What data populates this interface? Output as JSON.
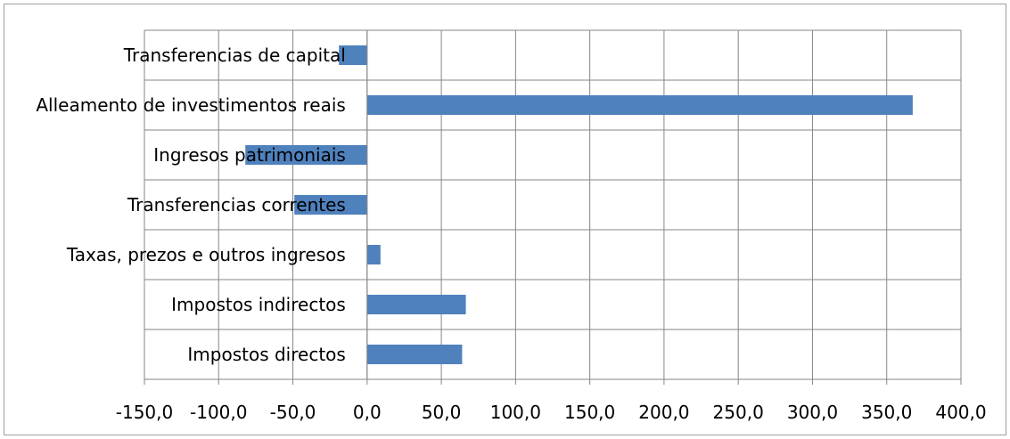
{
  "chart_data": {
    "type": "bar",
    "orientation": "horizontal",
    "title": "",
    "xlabel": "",
    "ylabel": "",
    "categories": [
      "Impostos directos",
      "Impostos indirectos",
      "Taxas, prezos e outros ingresos",
      "Transferencias correntes",
      "Ingresos patrimoniais",
      "Alleamento de investimentos reais",
      "Transferencias de capital"
    ],
    "values": [
      64.0,
      66.5,
      9.0,
      -49.0,
      -82.0,
      367.5,
      -19.0
    ],
    "xlim": [
      -150,
      400
    ],
    "x_ticks": [
      "-150,0",
      "-100,0",
      "-50,0",
      "0,0",
      "50,0",
      "100,0",
      "150,0",
      "200,0",
      "250,0",
      "300,0",
      "350,0",
      "400,0"
    ],
    "grid": true,
    "legend": "none",
    "colors": {
      "bar": "#4f81bd",
      "grid": "#868686",
      "axis": "#868686",
      "frame": "#9e9e9e"
    }
  }
}
